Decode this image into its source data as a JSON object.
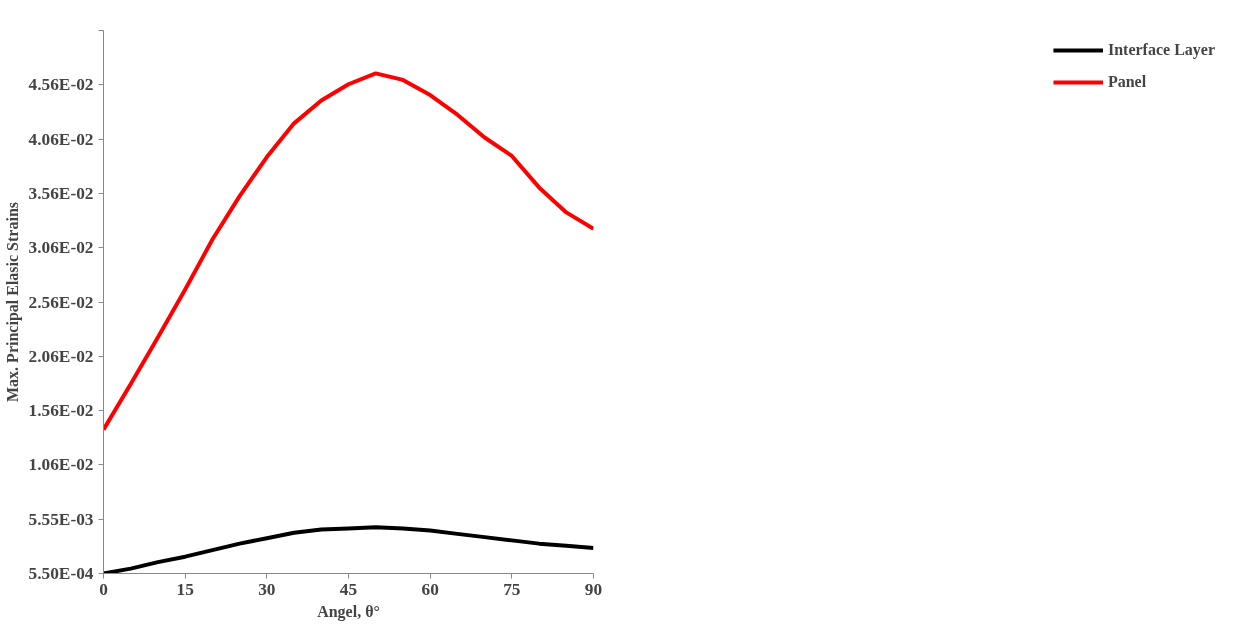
{
  "chart_data": {
    "type": "line",
    "xlabel": "Angel, θ°",
    "ylabel": "Max. Principal Elasic Strains",
    "x": [
      0,
      5,
      10,
      15,
      20,
      25,
      30,
      35,
      40,
      45,
      50,
      55,
      60,
      65,
      70,
      75,
      80,
      85,
      90
    ],
    "series": [
      {
        "name": "Interface Layer",
        "color": "#000000",
        "values": [
          0.00055,
          0.001,
          0.0016,
          0.0021,
          0.0027,
          0.0033,
          0.0038,
          0.0043,
          0.0046,
          0.0047,
          0.0048,
          0.0047,
          0.0045,
          0.0042,
          0.0039,
          0.0036,
          0.0033,
          0.0031,
          0.0029
        ]
      },
      {
        "name": "Panel",
        "color": "#ff0000",
        "values": [
          0.0138,
          0.018,
          0.0223,
          0.0267,
          0.0313,
          0.0353,
          0.0389,
          0.042,
          0.0441,
          0.0456,
          0.0466,
          0.046,
          0.0446,
          0.0428,
          0.0407,
          0.039,
          0.0361,
          0.0338,
          0.0323
        ]
      }
    ],
    "xlim": [
      0,
      90
    ],
    "xticks": [
      0,
      15,
      30,
      45,
      60,
      75,
      90
    ],
    "ylim": [
      0.00055,
      0.05055
    ],
    "yticks": [
      {
        "value": 0.00055,
        "label": "5.50E-04"
      },
      {
        "value": 0.00555,
        "label": "5.55E-03"
      },
      {
        "value": 0.01055,
        "label": "1.06E-02"
      },
      {
        "value": 0.01555,
        "label": "1.56E-02"
      },
      {
        "value": 0.02055,
        "label": "2.06E-02"
      },
      {
        "value": 0.02555,
        "label": "2.56E-02"
      },
      {
        "value": 0.03055,
        "label": "3.06E-02"
      },
      {
        "value": 0.03555,
        "label": "3.56E-02"
      },
      {
        "value": 0.04055,
        "label": "4.06E-02"
      },
      {
        "value": 0.04555,
        "label": "4.56E-02"
      },
      {
        "value": 0.05055,
        "label": null
      }
    ],
    "grid": false,
    "legend": "right",
    "marker": "none",
    "line_style": "solid"
  }
}
